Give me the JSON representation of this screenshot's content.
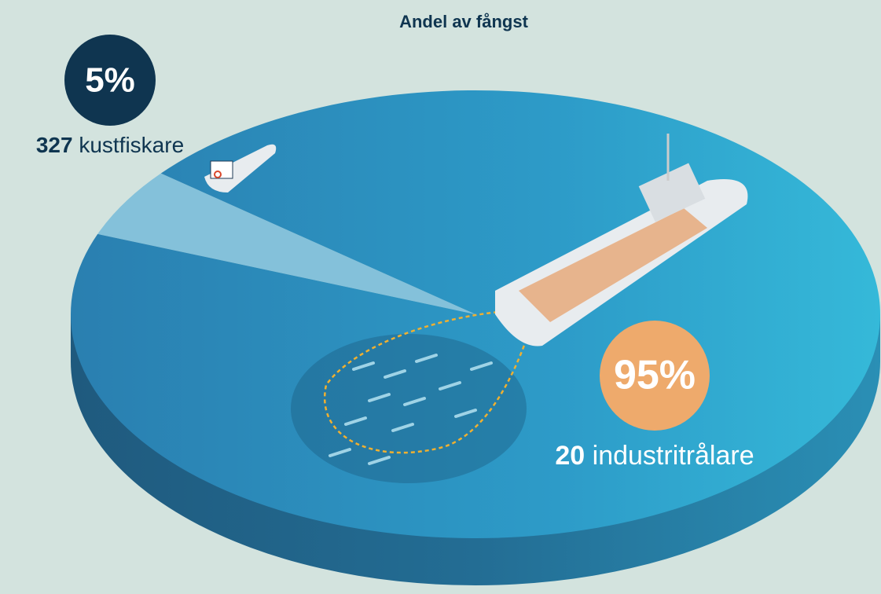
{
  "chart_data": {
    "type": "pie",
    "title": "Andel av fångst",
    "categories": [
      "kustfiskare",
      "industritrålare"
    ],
    "values": [
      5,
      95
    ],
    "value_labels": [
      "5%",
      "95%"
    ],
    "counts": [
      327,
      20
    ],
    "colors": [
      "#0f3550",
      "#eeaa6c"
    ]
  }
}
